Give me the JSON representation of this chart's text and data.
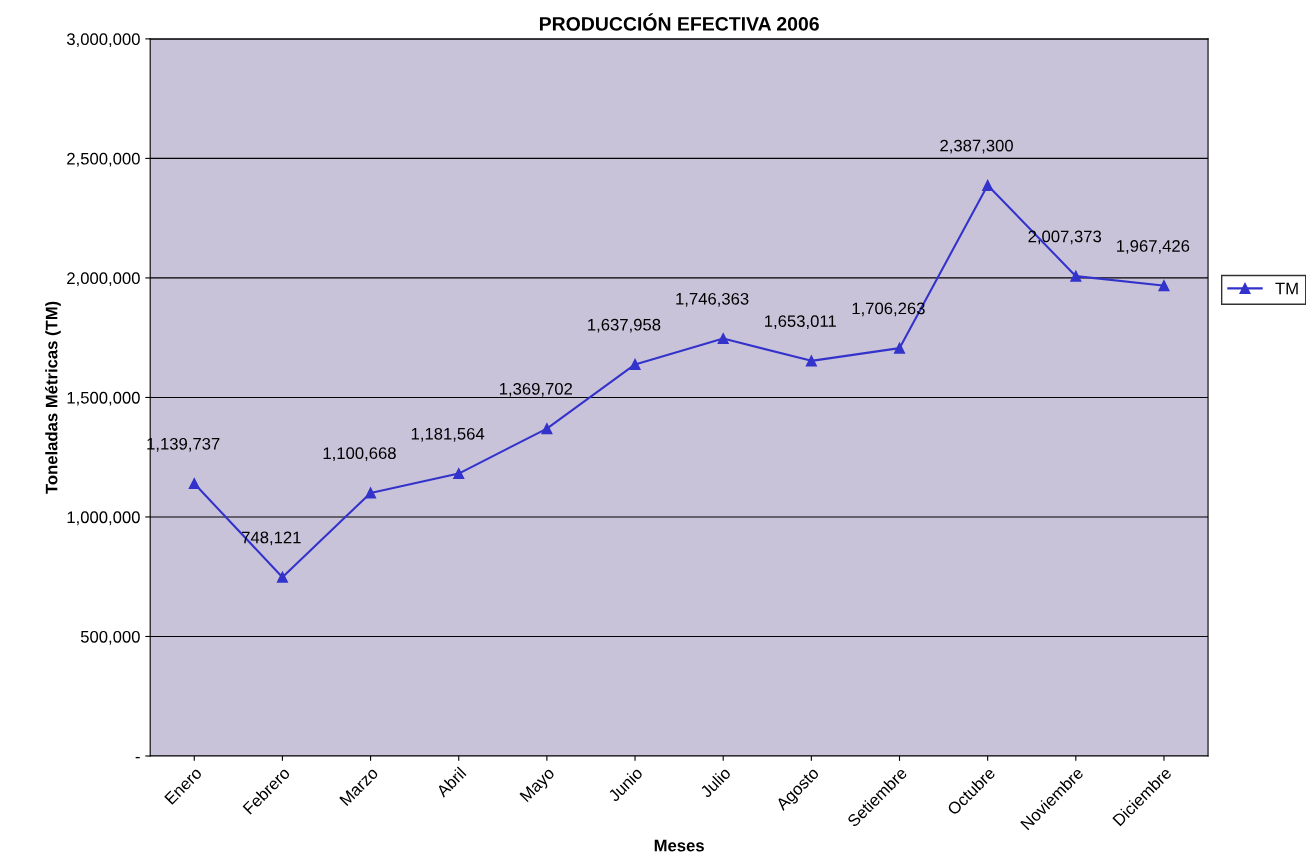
{
  "chart_data": {
    "type": "line",
    "title": "PRODUCCIÓN EFECTIVA 2006",
    "xlabel": "Meses",
    "ylabel": "Toneladas Métricas (TM)",
    "categories": [
      "Enero",
      "Febrero",
      "Marzo",
      "Abril",
      "Mayo",
      "Junio",
      "Julio",
      "Agosto",
      "Setiembre",
      "Octubre",
      "Noviembre",
      "Diciembre"
    ],
    "series": [
      {
        "name": "TM",
        "color": "#3333cc",
        "values": [
          1139737,
          748121,
          1100668,
          1181564,
          1369702,
          1637958,
          1746363,
          1653011,
          1706263,
          2387300,
          2007373,
          1967426
        ],
        "value_labels": [
          "1,139,737",
          "748,121",
          "1,100,668",
          "1,181,564",
          "1,369,702",
          "1,637,958",
          "1,746,363",
          "1,653,011",
          "1,706,263",
          "2,387,300",
          "2,007,373",
          "1,967,426"
        ]
      }
    ],
    "ylim": [
      0,
      3000000
    ],
    "yticks": [
      {
        "value": 0,
        "label": "-"
      },
      {
        "value": 500000,
        "label": "500,000"
      },
      {
        "value": 1000000,
        "label": "1,000,000"
      },
      {
        "value": 1500000,
        "label": "1,500,000"
      },
      {
        "value": 2000000,
        "label": "2,000,000"
      },
      {
        "value": 2500000,
        "label": "2,500,000"
      },
      {
        "value": 3000000,
        "label": "3,000,000"
      }
    ],
    "grid": "y",
    "legend": "right",
    "marker": "triangle",
    "line_style": "solid"
  }
}
